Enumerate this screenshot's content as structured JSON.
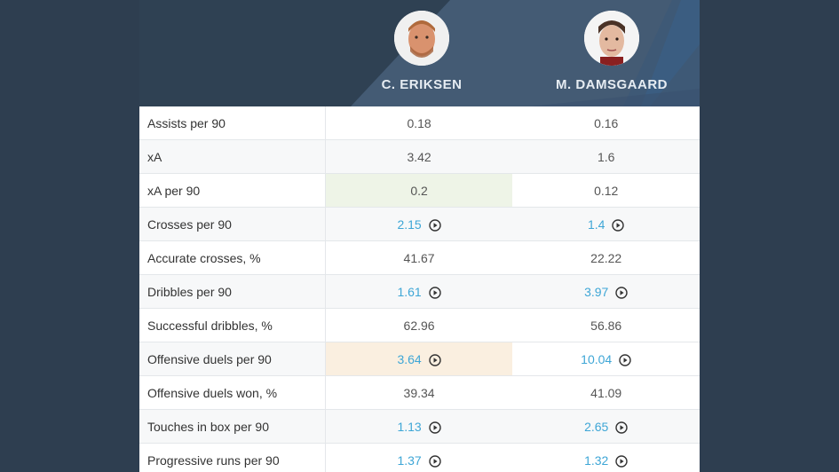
{
  "colors": {
    "page_bg": "#2e3e50",
    "header_bg": "#2f4153",
    "header_stripe": "#435a73",
    "link": "#3ea6d6",
    "highlight_green": "#eef4e7",
    "highlight_beige": "#faefe0"
  },
  "players": [
    {
      "name": "C. ERIKSEN",
      "avatar": "player-photo-eriksen"
    },
    {
      "name": "M. DAMSGAARD",
      "avatar": "player-photo-damsgaard"
    }
  ],
  "rows": [
    {
      "label": "Assists per 90",
      "p1": "0.18",
      "p2": "0.16",
      "video": false,
      "highlight": ""
    },
    {
      "label": "xA",
      "p1": "3.42",
      "p2": "1.6",
      "video": false,
      "highlight": ""
    },
    {
      "label": "xA per 90",
      "p1": "0.2",
      "p2": "0.12",
      "video": false,
      "highlight": "p1-green"
    },
    {
      "label": "Crosses per 90",
      "p1": "2.15",
      "p2": "1.4",
      "video": true,
      "highlight": ""
    },
    {
      "label": "Accurate crosses, %",
      "p1": "41.67",
      "p2": "22.22",
      "video": false,
      "highlight": ""
    },
    {
      "label": "Dribbles per 90",
      "p1": "1.61",
      "p2": "3.97",
      "video": true,
      "highlight": ""
    },
    {
      "label": "Successful dribbles, %",
      "p1": "62.96",
      "p2": "56.86",
      "video": false,
      "highlight": ""
    },
    {
      "label": "Offensive duels per 90",
      "p1": "3.64",
      "p2": "10.04",
      "video": true,
      "highlight": "p1-beige"
    },
    {
      "label": "Offensive duels won, %",
      "p1": "39.34",
      "p2": "41.09",
      "video": false,
      "highlight": ""
    },
    {
      "label": "Touches in box per 90",
      "p1": "1.13",
      "p2": "2.65",
      "video": true,
      "highlight": ""
    },
    {
      "label": "Progressive runs per 90",
      "p1": "1.37",
      "p2": "1.32",
      "video": true,
      "highlight": ""
    }
  ],
  "icons": {
    "play": "play-circle-icon"
  }
}
